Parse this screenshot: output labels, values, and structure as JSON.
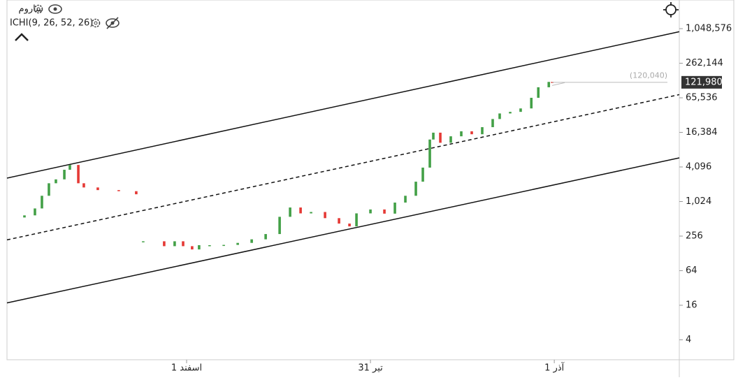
{
  "chart_data": {
    "type": "candlestick",
    "symbol": "ساروم",
    "indicator": "ICHI(9, 26, 52, 26)",
    "log_scale": true,
    "up_color": "#43a047",
    "down_color": "#e53935",
    "x": [
      -88.2,
      -82.5,
      -78.7,
      -74.9,
      -71.1,
      -66.5,
      -63.5,
      -58.9,
      -55.9,
      -48.3,
      -36.9,
      -27.4,
      -23.6,
      -12.2,
      -6.5,
      -1.9,
      3.0,
      6.8,
      12.5,
      20.2,
      27.8,
      35.4,
      43.0,
      50.6,
      56.3,
      62.0,
      67.7,
      75.3,
      82.9,
      88.6,
      92.4,
      100.0,
      107.6,
      113.3,
      119.0,
      124.7,
      128.5,
      132.3,
      134.2,
      138.0,
      143.7,
      149.4,
      155.1,
      160.8,
      166.5,
      170.3,
      176.0,
      181.7,
      187.5,
      191.3,
      197.0,
      198.9
    ],
    "open": [
      540,
      588,
      776,
      1290,
      2130,
      2490,
      3660,
      4440,
      2130,
      1800,
      1620,
      1550,
      200,
      208,
      171,
      208,
      171,
      150,
      178,
      178,
      180,
      195,
      225,
      278,
      555,
      806,
      637,
      673,
      526,
      423,
      378,
      637,
      745,
      630,
      982,
      1290,
      2270,
      3990,
      12300,
      16200,
      10800,
      14000,
      17100,
      15200,
      20200,
      28000,
      35000,
      37300,
      42800,
      65536,
      100000,
      124000
    ],
    "close": [
      588,
      776,
      1290,
      2130,
      2490,
      3660,
      4440,
      2130,
      1800,
      1620,
      1550,
      1370,
      208,
      171,
      208,
      171,
      150,
      178,
      178,
      180,
      195,
      225,
      278,
      555,
      806,
      637,
      673,
      526,
      423,
      378,
      637,
      745,
      630,
      982,
      1290,
      2270,
      3990,
      12300,
      16200,
      10800,
      14000,
      17100,
      15200,
      20200,
      28000,
      35000,
      37300,
      42800,
      65536,
      100000,
      124000,
      121980
    ],
    "xlim": [
      -97.7,
      268
    ],
    "xticks": [
      {
        "value": 0,
        "label": "1 اسفند"
      },
      {
        "value": 100,
        "label": "31 تیر"
      },
      {
        "value": 200,
        "label": "1 آذر"
      }
    ],
    "ylim": [
      1.8,
      2500000
    ],
    "yticks": [
      4,
      16,
      64,
      256,
      {
        "value": 1024,
        "label": "1,024"
      },
      {
        "value": 4096,
        "label": "4,096"
      },
      {
        "value": 16384,
        "label": "16,384"
      },
      {
        "value": 65536,
        "label": "65,536"
      },
      {
        "value": 262144,
        "label": "262,144"
      },
      {
        "value": 1048576,
        "label": "1,048,576"
      }
    ],
    "last_price": {
      "value": 121980,
      "label": "121,980"
    },
    "reference_price": {
      "value": 120040,
      "label": "(120,040)"
    },
    "trend_lines": [
      {
        "x": [
          -97.7,
          268
        ],
        "y": [
          2620,
          928000
        ],
        "style": "solid"
      },
      {
        "x": [
          -97.7,
          268
        ],
        "y": [
          220,
          74500
        ],
        "style": "dashed"
      },
      {
        "x": [
          -97.7,
          268
        ],
        "y": [
          17.6,
          5900
        ],
        "style": "solid"
      }
    ]
  }
}
